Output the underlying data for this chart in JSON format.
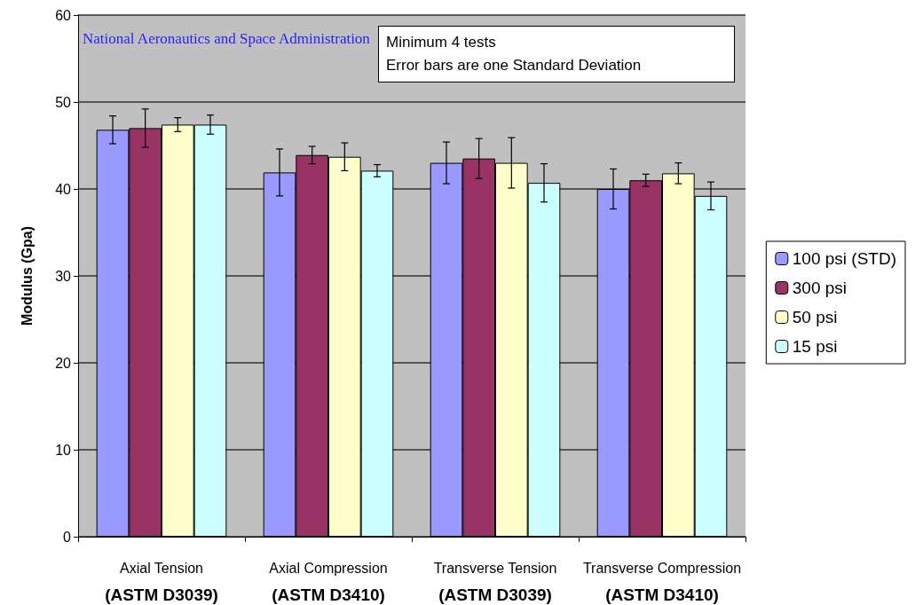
{
  "chart_data": {
    "type": "bar",
    "ylabel": "Modulus (Gpa)",
    "categories": [
      "Axial Tension\n(ASTM D3039)",
      "Axial Compression\n(ASTM D3410)",
      "Transverse Tension\n(ASTM D3039)",
      "Transverse Compression\n(ASTM D3410)"
    ],
    "series": [
      {
        "name": "100 psi (STD)",
        "color": "#9999ff",
        "values": [
          46.8,
          41.9,
          43.0,
          40.0
        ],
        "errors": [
          1.6,
          2.7,
          2.4,
          2.3
        ]
      },
      {
        "name": "300 psi",
        "color": "#993366",
        "values": [
          47.0,
          43.9,
          43.5,
          41.0
        ],
        "errors": [
          2.2,
          1.0,
          2.3,
          0.7
        ]
      },
      {
        "name": "50 psi",
        "color": "#ffffcc",
        "values": [
          47.4,
          43.7,
          43.0,
          41.8
        ],
        "errors": [
          0.8,
          1.6,
          2.9,
          1.2
        ]
      },
      {
        "name": "15 psi",
        "color": "#ccffff",
        "values": [
          47.4,
          42.1,
          40.7,
          39.2
        ],
        "errors": [
          1.1,
          0.7,
          2.2,
          1.6
        ]
      }
    ],
    "ylim": [
      0,
      60
    ],
    "yticks": [
      0,
      10,
      20,
      30,
      40,
      50,
      60
    ],
    "grid": "y",
    "legend": "right",
    "annotations": [
      "National Aeronautics and Space Administration",
      "Minimum 4 tests\nError bars are one Standard Deviation"
    ]
  }
}
